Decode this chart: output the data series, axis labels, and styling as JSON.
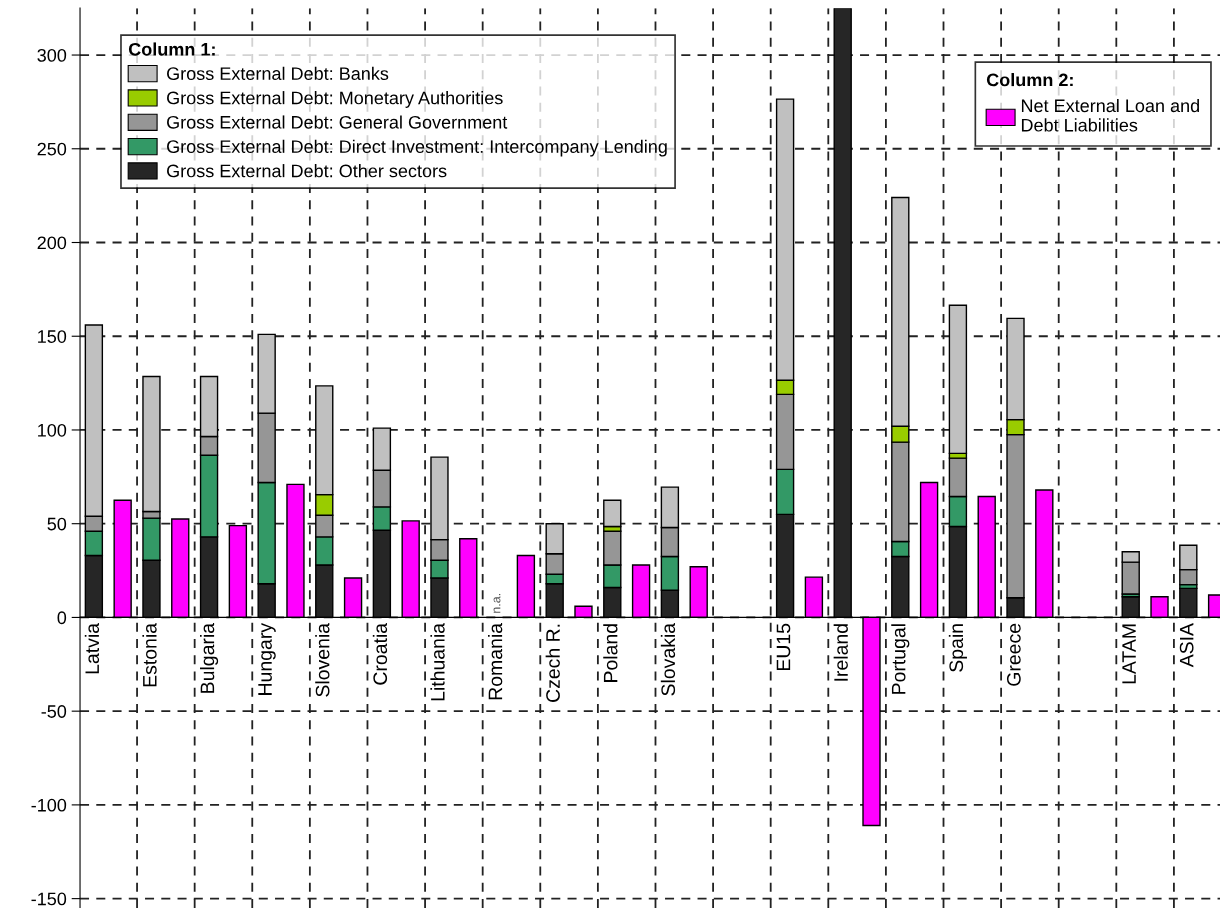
{
  "chart_data": {
    "type": "bar",
    "stacked": true,
    "categories": [
      "Latvia",
      null,
      "Estonia",
      null,
      "Bulgaria",
      null,
      "Hungary",
      null,
      "Slovenia",
      null,
      "Croatia",
      null,
      "Lithuania",
      null,
      "Romania",
      null,
      "Czech R.",
      null,
      "Poland",
      null,
      "Slovakia",
      null,
      null,
      null,
      "EU15",
      null,
      "Ireland",
      null,
      "Portugal",
      null,
      "Spain",
      null,
      "Greece",
      null,
      null,
      null,
      "LATAM",
      null,
      "ASIA",
      null
    ],
    "series": [
      {
        "name": "Gross External Debt: Other sectors",
        "color": "#262626",
        "values": [
          33,
          null,
          30.5,
          null,
          43,
          null,
          18,
          null,
          28,
          null,
          46.5,
          null,
          21,
          null,
          null,
          null,
          18,
          null,
          16,
          null,
          14.5,
          null,
          null,
          null,
          55,
          null,
          325,
          null,
          32.5,
          null,
          48.5,
          null,
          10.5,
          null,
          null,
          null,
          11,
          null,
          15.5,
          null
        ]
      },
      {
        "name": "Gross External Debt: Direct Investment: Intercompany Lending",
        "color": "#339966",
        "values": [
          13,
          null,
          22.5,
          null,
          43.5,
          null,
          54,
          null,
          15,
          null,
          12.5,
          null,
          9.5,
          null,
          null,
          null,
          5,
          null,
          12,
          null,
          18,
          null,
          null,
          null,
          24,
          null,
          null,
          null,
          8,
          null,
          16,
          null,
          null,
          null,
          null,
          null,
          1.5,
          null,
          2,
          null
        ]
      },
      {
        "name": "Gross External Debt: General Government",
        "color": "#969696",
        "values": [
          8,
          null,
          3.5,
          null,
          10,
          null,
          37,
          null,
          11.5,
          null,
          19.5,
          null,
          11,
          null,
          null,
          null,
          11,
          null,
          18,
          null,
          15.5,
          null,
          null,
          null,
          40,
          null,
          null,
          null,
          53,
          null,
          20.5,
          null,
          87,
          null,
          null,
          null,
          17,
          null,
          8,
          null
        ]
      },
      {
        "name": "Gross External Debt: Monetary Authorities",
        "color": "#99cc00",
        "values": [
          null,
          null,
          null,
          null,
          null,
          null,
          null,
          null,
          11,
          null,
          null,
          null,
          null,
          null,
          null,
          null,
          null,
          null,
          2.5,
          null,
          null,
          null,
          null,
          null,
          7.5,
          null,
          null,
          null,
          8.5,
          null,
          2.5,
          null,
          8,
          null,
          null,
          null,
          null,
          null,
          null,
          null
        ]
      },
      {
        "name": "Gross External Debt: Banks",
        "color": "#c0c0c0",
        "values": [
          102,
          null,
          72,
          null,
          32,
          null,
          42,
          null,
          58,
          null,
          22.5,
          null,
          44,
          null,
          null,
          null,
          16,
          null,
          14,
          null,
          21.5,
          null,
          null,
          null,
          150,
          null,
          null,
          null,
          122,
          null,
          79,
          null,
          54,
          null,
          null,
          null,
          5.5,
          null,
          13,
          null
        ]
      },
      {
        "name": "Net External Loan and\nDebt Liabilities",
        "color": "#ff00ff",
        "values": [
          null,
          62.5,
          null,
          52.5,
          null,
          49,
          null,
          71,
          null,
          21,
          null,
          51.5,
          null,
          42,
          null,
          33,
          null,
          6,
          null,
          28,
          null,
          27,
          null,
          null,
          null,
          21.5,
          null,
          -111,
          null,
          72,
          null,
          64.5,
          null,
          68,
          null,
          null,
          null,
          11,
          null,
          12
        ]
      }
    ],
    "legend_title": "Column 1:",
    "annotations": [
      "Column 2:",
      "n.a."
    ],
    "ylim": [
      -155,
      325
    ],
    "yticks": [
      -150,
      -100,
      -50,
      0,
      50,
      100,
      150,
      200,
      250,
      300
    ],
    "grid": true,
    "legend": "top left"
  }
}
